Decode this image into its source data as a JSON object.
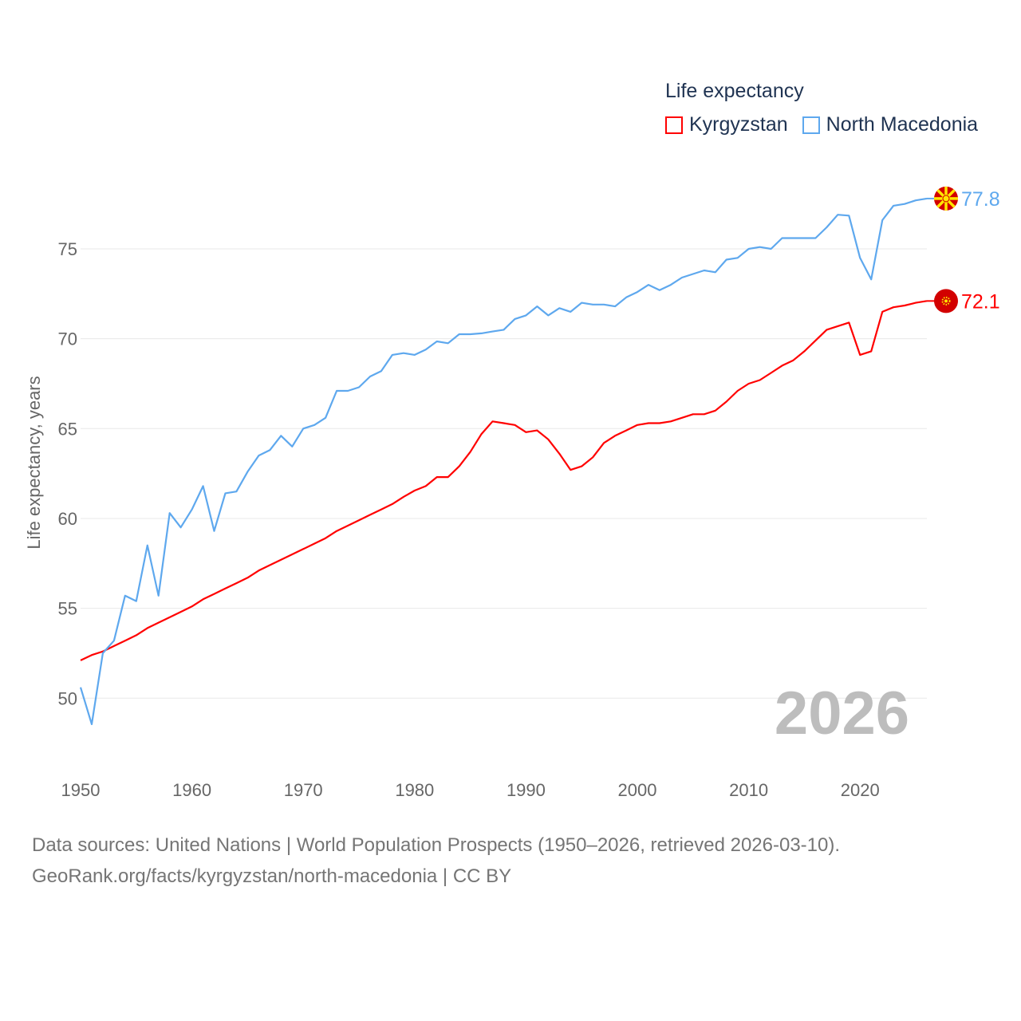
{
  "legend": {
    "title": "Life expectancy",
    "items": [
      {
        "label": "Kyrgyzstan",
        "color": "#ff0000"
      },
      {
        "label": "North Macedonia",
        "color": "#5ea8ee"
      }
    ]
  },
  "chart_data": {
    "type": "line",
    "title": "Life expectancy",
    "xlabel": "",
    "ylabel": "Life expectancy, years",
    "xlim": [
      1950,
      2026
    ],
    "ylim": [
      47,
      79
    ],
    "yticks": [
      50,
      55,
      60,
      65,
      70,
      75
    ],
    "xticks": [
      1950,
      1960,
      1970,
      1980,
      1990,
      2000,
      2010,
      2020
    ],
    "grid": true,
    "legend_position": "top-right",
    "year_watermark": "2026",
    "x": [
      1950,
      1951,
      1952,
      1953,
      1954,
      1955,
      1956,
      1957,
      1958,
      1959,
      1960,
      1961,
      1962,
      1963,
      1964,
      1965,
      1966,
      1967,
      1968,
      1969,
      1970,
      1971,
      1972,
      1973,
      1974,
      1975,
      1976,
      1977,
      1978,
      1979,
      1980,
      1981,
      1982,
      1983,
      1984,
      1985,
      1986,
      1987,
      1988,
      1989,
      1990,
      1991,
      1992,
      1993,
      1994,
      1995,
      1996,
      1997,
      1998,
      1999,
      2000,
      2001,
      2002,
      2003,
      2004,
      2005,
      2006,
      2007,
      2008,
      2009,
      2010,
      2011,
      2012,
      2013,
      2014,
      2015,
      2016,
      2017,
      2018,
      2019,
      2020,
      2021,
      2022,
      2023,
      2024,
      2025,
      2026
    ],
    "series": [
      {
        "name": "Kyrgyzstan",
        "color": "#ff0000",
        "end_label": "72.1",
        "values": [
          52.1,
          52.4,
          52.6,
          52.9,
          53.2,
          53.5,
          53.9,
          54.2,
          54.5,
          54.8,
          55.1,
          55.5,
          55.8,
          56.1,
          56.4,
          56.7,
          57.1,
          57.4,
          57.7,
          58.0,
          58.3,
          58.6,
          58.9,
          59.3,
          59.6,
          59.9,
          60.2,
          60.5,
          60.8,
          61.2,
          61.55,
          61.8,
          62.3,
          62.3,
          62.9,
          63.7,
          64.7,
          65.4,
          65.3,
          65.2,
          64.8,
          64.9,
          64.4,
          63.6,
          62.7,
          62.9,
          63.4,
          64.2,
          64.6,
          64.9,
          65.2,
          65.3,
          65.3,
          65.4,
          65.6,
          65.8,
          65.8,
          66.0,
          66.5,
          67.1,
          67.5,
          67.7,
          68.1,
          68.5,
          68.8,
          69.3,
          69.9,
          70.5,
          70.7,
          70.9,
          69.1,
          69.3,
          71.5,
          71.75,
          71.85,
          72.0,
          72.1
        ]
      },
      {
        "name": "North Macedonia",
        "color": "#5ea8ee",
        "end_label": "77.8",
        "values": [
          50.6,
          48.55,
          52.5,
          53.2,
          55.7,
          55.4,
          58.5,
          55.7,
          60.3,
          59.5,
          60.5,
          61.8,
          59.3,
          61.4,
          61.5,
          62.6,
          63.5,
          63.8,
          64.6,
          64.0,
          65.0,
          65.2,
          65.6,
          67.1,
          67.1,
          67.3,
          67.9,
          68.2,
          69.1,
          69.2,
          69.1,
          69.4,
          69.85,
          69.75,
          70.25,
          70.25,
          70.3,
          70.4,
          70.5,
          71.1,
          71.3,
          71.8,
          71.3,
          71.7,
          71.5,
          72.0,
          71.9,
          71.9,
          71.8,
          72.3,
          72.6,
          73.0,
          72.7,
          73.0,
          73.4,
          73.6,
          73.8,
          73.7,
          74.4,
          74.5,
          75.0,
          75.1,
          75.0,
          75.6,
          75.6,
          75.6,
          75.6,
          76.2,
          76.9,
          76.85,
          74.5,
          73.3,
          76.6,
          77.4,
          77.5,
          77.7,
          77.8
        ]
      }
    ]
  },
  "footer": {
    "line1": "Data sources: United Nations | World Population Prospects (1950–2026, retrieved 2026-03-10).",
    "line2": "GeoRank.org/facts/kyrgyzstan/north-macedonia | CC BY"
  }
}
